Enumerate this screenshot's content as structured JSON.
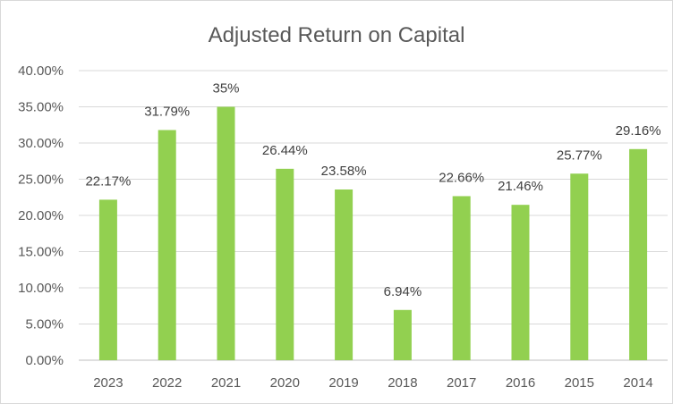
{
  "chart_data": {
    "type": "bar",
    "title": "Adjusted Return on Capital",
    "xlabel": "",
    "ylabel": "",
    "categories": [
      "2023",
      "2022",
      "2021",
      "2020",
      "2019",
      "2018",
      "2017",
      "2016",
      "2015",
      "2014"
    ],
    "values": [
      22.17,
      31.79,
      35,
      26.44,
      23.58,
      6.94,
      22.66,
      21.46,
      25.77,
      29.16
    ],
    "data_labels": [
      "22.17%",
      "31.79%",
      "35%",
      "26.44%",
      "23.58%",
      "6.94%",
      "22.66%",
      "21.46%",
      "25.77%",
      "29.16%"
    ],
    "ylim": [
      0,
      40
    ],
    "y_ticks": [
      "0.00%",
      "5.00%",
      "10.00%",
      "15.00%",
      "20.00%",
      "25.00%",
      "30.00%",
      "35.00%",
      "40.00%"
    ],
    "grid": true,
    "legend": "none",
    "colors": {
      "bar": "#92d050"
    }
  }
}
